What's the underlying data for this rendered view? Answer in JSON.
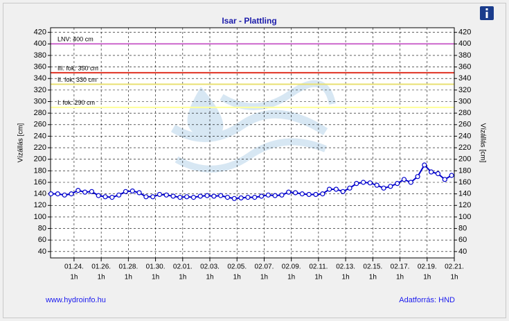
{
  "chart_data": {
    "type": "line",
    "title": "Isar - Plattling",
    "y_label": "Vízállás [cm]",
    "y2_label": "Vízállás [cm]",
    "footer_left": "www.hydroinfo.hu",
    "footer_right": "Adatforrás: HND",
    "xlim": [
      -1.73,
      28
    ],
    "xticks": [
      {
        "value": 0,
        "label": "01.24.",
        "sublabel": "1h"
      },
      {
        "value": 2,
        "label": "01.26.",
        "sublabel": "1h"
      },
      {
        "value": 4,
        "label": "01.28.",
        "sublabel": "1h"
      },
      {
        "value": 6,
        "label": "01.30.",
        "sublabel": "1h"
      },
      {
        "value": 8,
        "label": "02.01.",
        "sublabel": "1h"
      },
      {
        "value": 10,
        "label": "02.03.",
        "sublabel": "1h"
      },
      {
        "value": 12,
        "label": "02.05.",
        "sublabel": "1h"
      },
      {
        "value": 14,
        "label": "02.07.",
        "sublabel": "1h"
      },
      {
        "value": 16,
        "label": "02.09.",
        "sublabel": "1h"
      },
      {
        "value": 18,
        "label": "02.11.",
        "sublabel": "1h"
      },
      {
        "value": 20,
        "label": "02.13.",
        "sublabel": "1h"
      },
      {
        "value": 22,
        "label": "02.15.",
        "sublabel": "1h"
      },
      {
        "value": 24,
        "label": "02.17.",
        "sublabel": "1h"
      },
      {
        "value": 26,
        "label": "02.19.",
        "sublabel": "1h"
      },
      {
        "value": 28,
        "label": "02.21.",
        "sublabel": "1h"
      }
    ],
    "ylim": [
      29,
      428
    ],
    "yticks": [
      40,
      60,
      80,
      100,
      120,
      140,
      160,
      180,
      200,
      220,
      240,
      260,
      280,
      300,
      320,
      340,
      360,
      380,
      400,
      420
    ],
    "y2lim": [
      29,
      428
    ],
    "y2ticks": [
      40,
      60,
      80,
      100,
      120,
      140,
      160,
      180,
      200,
      220,
      240,
      260,
      280,
      300,
      320,
      340,
      360,
      380,
      400,
      420
    ],
    "grid": true,
    "thresholds": [
      {
        "value": 400,
        "label": "LNV: 400 cm",
        "color": "#cc66cc"
      },
      {
        "value": 350,
        "label": "III. fok: 350 cm",
        "color": "#e03020"
      },
      {
        "value": 330,
        "label": "II. fok: 330 cm",
        "color": "#e8e070"
      },
      {
        "value": 290,
        "label": "I. fok: 290 cm",
        "color": "#ffff99"
      }
    ],
    "x": [
      -1.7,
      -1.2,
      -0.7,
      -0.2,
      0.3,
      0.8,
      1.3,
      1.8,
      2.3,
      2.8,
      3.3,
      3.8,
      4.3,
      4.8,
      5.3,
      5.8,
      6.3,
      6.8,
      7.3,
      7.8,
      8.3,
      8.8,
      9.3,
      9.8,
      10.3,
      10.8,
      11.3,
      11.8,
      12.3,
      12.8,
      13.3,
      13.8,
      14.3,
      14.8,
      15.3,
      15.8,
      16.3,
      16.8,
      17.3,
      17.8,
      18.3,
      18.8,
      19.3,
      19.8,
      20.3,
      20.8,
      21.3,
      21.8,
      22.3,
      22.8,
      23.3,
      23.8,
      24.3,
      24.8,
      25.3,
      25.8,
      26.3,
      26.8,
      27.3,
      27.8
    ],
    "series": [
      {
        "color": "#0000cc",
        "values": [
          140,
          140,
          138,
          140,
          146,
          143,
          144,
          137,
          135,
          134,
          138,
          144,
          145,
          142,
          135,
          135,
          139,
          138,
          136,
          134,
          135,
          134,
          136,
          137,
          136,
          137,
          134,
          132,
          133,
          134,
          134,
          136,
          138,
          137,
          138,
          143,
          142,
          140,
          139,
          139,
          140,
          148,
          148,
          144,
          150,
          158,
          160,
          159,
          155,
          150,
          153,
          158,
          165,
          160,
          170,
          190,
          178,
          175,
          165,
          172
        ]
      }
    ]
  }
}
